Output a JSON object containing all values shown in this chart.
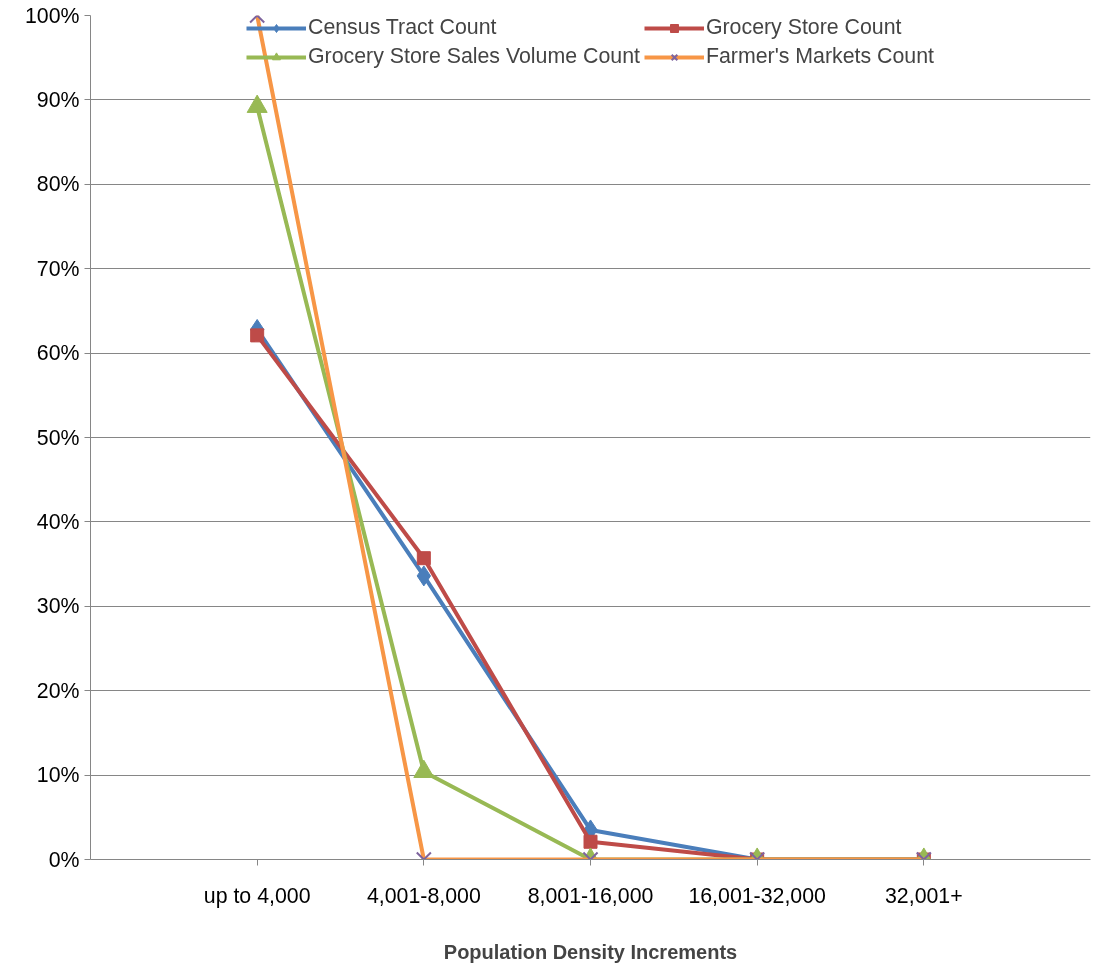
{
  "chart_data": {
    "type": "line",
    "xlabel": "Population Density Increments",
    "categories": [
      "up to 4,000",
      "4,001-8,000",
      "8,001-16,000",
      "16,001-32,000",
      "32,001+"
    ],
    "series": [
      {
        "name": "Census Tract Count",
        "color": "#4a7ebb",
        "marker": "diamond",
        "values": [
          62.8,
          33.6,
          3.5,
          0,
          0
        ]
      },
      {
        "name": "Grocery Store Count",
        "color": "#be4b48",
        "marker": "square",
        "values": [
          62.1,
          35.7,
          2.1,
          0,
          0
        ]
      },
      {
        "name": "Grocery Store Sales Volume Count",
        "color": "#98b954",
        "marker": "triangle",
        "values": [
          89.2,
          10.4,
          0,
          0,
          0
        ]
      },
      {
        "name": "Farmer's Markets Count",
        "color": "#f79646",
        "marker": "cross",
        "values": [
          100,
          0,
          0,
          0,
          0
        ]
      }
    ],
    "ylim": [
      0,
      100
    ],
    "yticks": [
      {
        "value": 0,
        "label": "0%"
      },
      {
        "value": 10,
        "label": "10%"
      },
      {
        "value": 20,
        "label": "20%"
      },
      {
        "value": 30,
        "label": "30%"
      },
      {
        "value": 40,
        "label": "40%"
      },
      {
        "value": 50,
        "label": "50%"
      },
      {
        "value": 60,
        "label": "60%"
      },
      {
        "value": 70,
        "label": "70%"
      },
      {
        "value": 80,
        "label": "80%"
      },
      {
        "value": 90,
        "label": "90%"
      },
      {
        "value": 100,
        "label": "100%"
      }
    ],
    "grid": "y",
    "legend": "top"
  }
}
